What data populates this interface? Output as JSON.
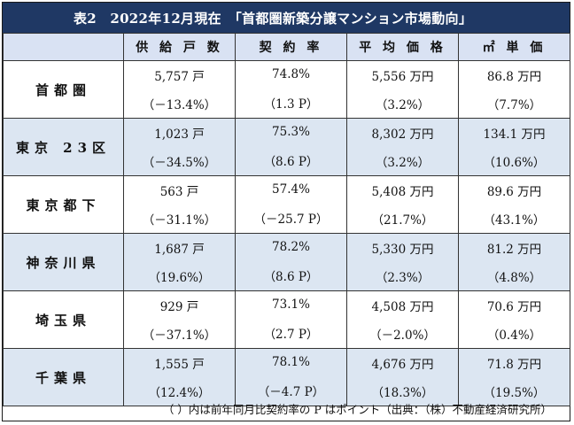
{
  "title": "表2　2022年12月現在　「首都圏新築分譲マンション市場動向」",
  "columns": [
    "",
    "供 給 戸 数",
    "契 約 率",
    "平 均 価 格",
    "㎡ 単 価"
  ],
  "rows": [
    {
      "region": "首都圏",
      "supply": "5,757 戸",
      "supply_chg": "（－13.4%）",
      "rate": "74.8%",
      "rate_chg": "（1.3 P）",
      "price": "5,556 万円",
      "price_chg": "（3.2%）",
      "unit": "86.8 万円",
      "unit_chg": "（7.7%）"
    },
    {
      "region": "東京 23区",
      "supply": "1,023 戸",
      "supply_chg": "（－34.5%）",
      "rate": "75.3%",
      "rate_chg": "（8.6 P）",
      "price": "8,302 万円",
      "price_chg": "（3.2%）",
      "unit": "134.1 万円",
      "unit_chg": "（10.6%）"
    },
    {
      "region": "東京都下",
      "supply": "563 戸",
      "supply_chg": "（－31.1%）",
      "rate": "57.4%",
      "rate_chg": "（－25.7 P）",
      "price": "5,408 万円",
      "price_chg": "（21.7%）",
      "unit": "89.6 万円",
      "unit_chg": "（43.1%）"
    },
    {
      "region": "神奈川県",
      "supply": "1,687 戸",
      "supply_chg": "（19.6%）",
      "rate": "78.2%",
      "rate_chg": "（8.6 P）",
      "price": "5,330 万円",
      "price_chg": "（2.3%）",
      "unit": "81.2 万円",
      "unit_chg": "（4.8%）"
    },
    {
      "region": "埼玉県",
      "supply": "929 戸",
      "supply_chg": "（－37.1%）",
      "rate": "73.1%",
      "rate_chg": "（2.7 P）",
      "price": "4,508 万円",
      "price_chg": "（－2.0%）",
      "unit": "70.6 万円",
      "unit_chg": "（0.4%）"
    },
    {
      "region": "千葉県",
      "supply": "1,555 戸",
      "supply_chg": "（12.4%）",
      "rate": "78.1%",
      "rate_chg": "（－4.7 P）",
      "price": "4,676 万円",
      "price_chg": "（18.3%）",
      "unit": "71.8 万円",
      "unit_chg": "（19.5%）"
    }
  ],
  "footer": "（ ）内は前年同月比契約率の P はポイント（出典：（株）不動産経済研究所）"
}
